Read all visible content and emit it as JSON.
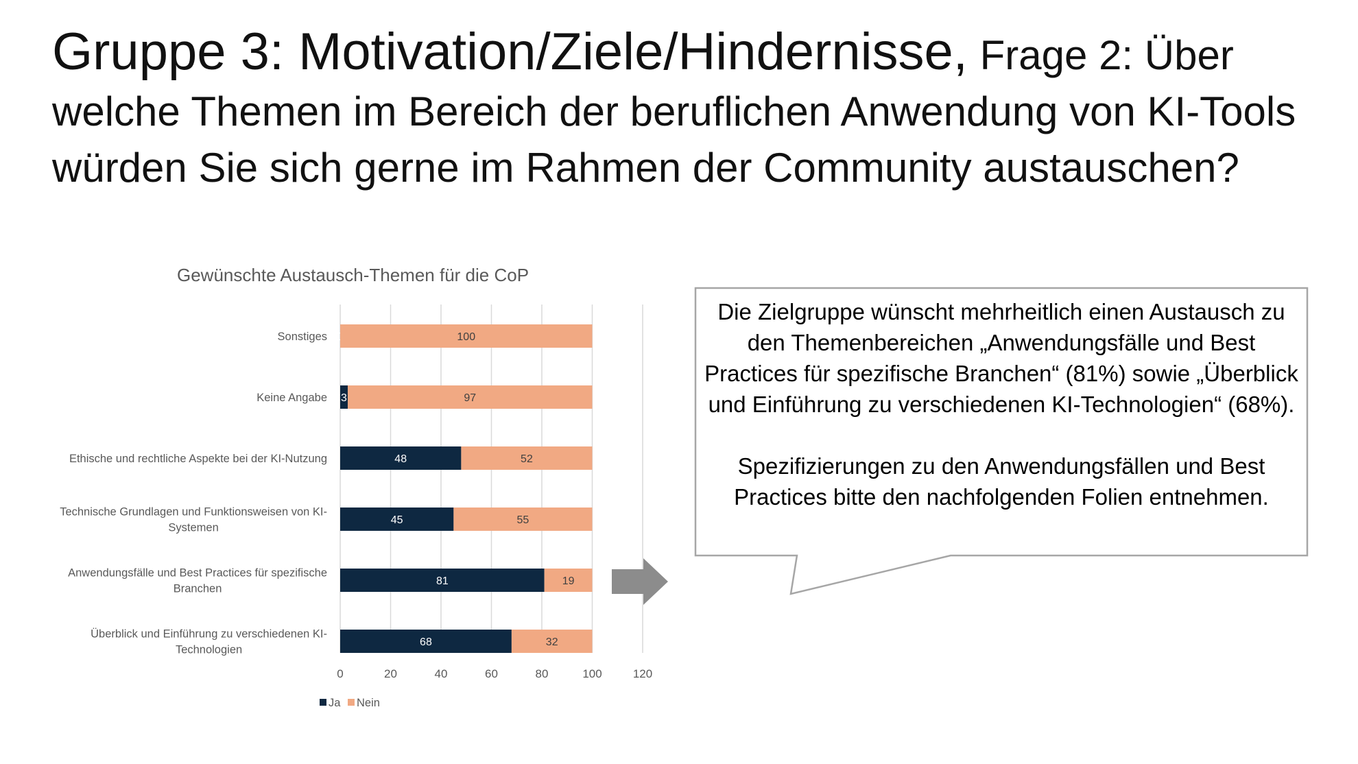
{
  "slide": {
    "title_main": "Gruppe 3: Motivation/Ziele/Hindernisse,",
    "title_question": "Frage 2: Über welche Themen im Bereich der beruflichen Anwendung von KI-Tools würden Sie sich gerne im Rahmen der Community austauschen?"
  },
  "callout": {
    "paragraph_1": "Die Zielgruppe wünscht mehrheitlich einen Austausch zu den Themenbereichen „Anwendungsfälle und Best Practices für spezifische Branchen“ (81%) sowie „Überblick und Einführung zu verschiedenen KI-Technologien“ (68%).",
    "paragraph_2": "Spezifizierungen zu den Anwendungsfällen und Best Practices bitte den nachfolgenden Folien entnehmen."
  },
  "chart_data": {
    "type": "bar",
    "orientation": "horizontal",
    "stacked": true,
    "title": "Gewünschte Austausch-Themen für die CoP",
    "categories": [
      "Sonstiges",
      "Keine Angabe",
      "Ethische und rechtliche Aspekte bei der KI-Nutzung",
      "Technische Grundlagen und Funktionsweisen von KI-Systemen",
      "Anwendungsfälle und Best Practices für spezifische Branchen",
      "Überblick und Einführung zu verschiedenen KI-Technologien"
    ],
    "category_label_lines": [
      [
        "Sonstiges"
      ],
      [
        "Keine Angabe"
      ],
      [
        "Ethische und rechtliche Aspekte bei der KI-Nutzung"
      ],
      [
        "Technische Grundlagen und Funktionsweisen von KI-",
        "Systemen"
      ],
      [
        "Anwendungsfälle und Best Practices für spezifische",
        "Branchen"
      ],
      [
        "Überblick und Einführung zu verschiedenen KI-",
        "Technologien"
      ]
    ],
    "series": [
      {
        "name": "Ja",
        "color": "#0e2841",
        "values": [
          0,
          3,
          48,
          45,
          81,
          68
        ]
      },
      {
        "name": "Nein",
        "color": "#f1a983",
        "values": [
          100,
          97,
          52,
          55,
          19,
          32
        ]
      }
    ],
    "xlim": [
      0,
      120
    ],
    "xticks": [
      0,
      20,
      40,
      60,
      80,
      100,
      120
    ],
    "grid": true,
    "legend": "bottom-left"
  }
}
